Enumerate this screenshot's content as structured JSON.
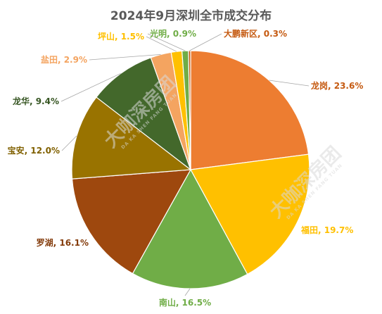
{
  "chart_data": {
    "type": "pie",
    "title": "2024年9月深圳全市成交分布",
    "slices": [
      {
        "name": "龙岗",
        "label": "龙岗, 23.6%",
        "value": 23.6,
        "color": "#ed7d31",
        "label_color": "#c55a11"
      },
      {
        "name": "福田",
        "label": "福田, 19.7%",
        "value": 19.7,
        "color": "#ffc000",
        "label_color": "#ffc000"
      },
      {
        "name": "南山",
        "label": "南山, 16.5%",
        "value": 16.5,
        "color": "#70ad47",
        "label_color": "#70ad47"
      },
      {
        "name": "罗湖",
        "label": "罗湖, 16.1%",
        "value": 16.1,
        "color": "#9e480e",
        "label_color": "#843c0c"
      },
      {
        "name": "宝安",
        "label": "宝安, 12.0%",
        "value": 12.0,
        "color": "#997300",
        "label_color": "#806000"
      },
      {
        "name": "龙华",
        "label": "龙华, 9.4%",
        "value": 9.4,
        "color": "#43682b",
        "label_color": "#375623"
      },
      {
        "name": "盐田",
        "label": "盐田, 2.9%",
        "value": 2.9,
        "color": "#f4a460",
        "label_color": "#f4a460"
      },
      {
        "name": "坪山",
        "label": "坪山, 1.5%",
        "value": 1.5,
        "color": "#ffc000",
        "label_color": "#ffc000"
      },
      {
        "name": "光明",
        "label": "光明, 0.9%",
        "value": 0.9,
        "color": "#70ad47",
        "label_color": "#70ad47"
      },
      {
        "name": "大鹏新区",
        "label": "大鹏新区, 0.3%",
        "value": 0.3,
        "color": "#c55a11",
        "label_color": "#c55a11"
      }
    ],
    "legend": "none"
  },
  "watermark": {
    "text": "大咖深房团",
    "subtext": "DA KA SHEN FANG TUAN",
    "color": "#d9d9d9"
  }
}
